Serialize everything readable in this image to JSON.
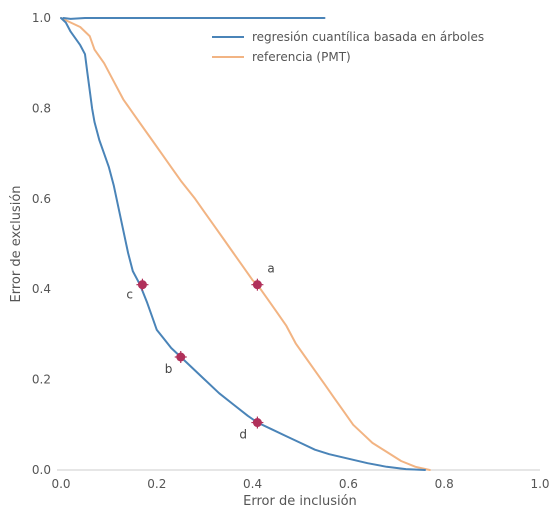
{
  "chart_data": {
    "type": "line",
    "xlabel": "Error de inclusión",
    "ylabel": "Error de exclusión",
    "xlim": [
      0.0,
      1.0
    ],
    "ylim": [
      0.0,
      1.0
    ],
    "x_ticks": [
      "0.0",
      "0.2",
      "0.4",
      "0.6",
      "0.8",
      "1.0"
    ],
    "y_ticks": [
      "0.0",
      "0.2",
      "0.4",
      "0.6",
      "0.8",
      "1.0"
    ],
    "grid": false,
    "legend_position": "top-right",
    "series": [
      {
        "name": "regresión cuantílica basada en árboles",
        "color": "#4a84b8",
        "points": [
          [
            0.0,
            1.0
          ],
          [
            0.01,
            0.99
          ],
          [
            0.02,
            0.97
          ],
          [
            0.03,
            0.955
          ],
          [
            0.04,
            0.94
          ],
          [
            0.05,
            0.92
          ],
          [
            0.055,
            0.88
          ],
          [
            0.06,
            0.84
          ],
          [
            0.065,
            0.8
          ],
          [
            0.07,
            0.77
          ],
          [
            0.08,
            0.73
          ],
          [
            0.09,
            0.7
          ],
          [
            0.1,
            0.67
          ],
          [
            0.11,
            0.63
          ],
          [
            0.12,
            0.58
          ],
          [
            0.13,
            0.53
          ],
          [
            0.14,
            0.48
          ],
          [
            0.15,
            0.44
          ],
          [
            0.165,
            0.41
          ],
          [
            0.18,
            0.37
          ],
          [
            0.19,
            0.34
          ],
          [
            0.2,
            0.31
          ],
          [
            0.215,
            0.29
          ],
          [
            0.23,
            0.27
          ],
          [
            0.25,
            0.25
          ],
          [
            0.27,
            0.23
          ],
          [
            0.3,
            0.2
          ],
          [
            0.33,
            0.17
          ],
          [
            0.36,
            0.145
          ],
          [
            0.39,
            0.12
          ],
          [
            0.41,
            0.105
          ],
          [
            0.44,
            0.09
          ],
          [
            0.47,
            0.075
          ],
          [
            0.5,
            0.06
          ],
          [
            0.53,
            0.045
          ],
          [
            0.56,
            0.035
          ],
          [
            0.6,
            0.025
          ],
          [
            0.64,
            0.015
          ],
          [
            0.68,
            0.007
          ],
          [
            0.72,
            0.002
          ],
          [
            0.76,
            0.0
          ]
        ]
      },
      {
        "name": "referencia (PMT)",
        "color": "#f2b483",
        "points": [
          [
            0.0,
            1.0
          ],
          [
            0.02,
            0.99
          ],
          [
            0.04,
            0.98
          ],
          [
            0.06,
            0.96
          ],
          [
            0.07,
            0.93
          ],
          [
            0.09,
            0.9
          ],
          [
            0.11,
            0.86
          ],
          [
            0.13,
            0.82
          ],
          [
            0.15,
            0.79
          ],
          [
            0.17,
            0.76
          ],
          [
            0.19,
            0.73
          ],
          [
            0.21,
            0.7
          ],
          [
            0.23,
            0.67
          ],
          [
            0.25,
            0.64
          ],
          [
            0.28,
            0.6
          ],
          [
            0.3,
            0.57
          ],
          [
            0.32,
            0.54
          ],
          [
            0.34,
            0.51
          ],
          [
            0.36,
            0.48
          ],
          [
            0.38,
            0.45
          ],
          [
            0.4,
            0.42
          ],
          [
            0.41,
            0.41
          ],
          [
            0.43,
            0.38
          ],
          [
            0.45,
            0.35
          ],
          [
            0.47,
            0.32
          ],
          [
            0.49,
            0.28
          ],
          [
            0.51,
            0.25
          ],
          [
            0.53,
            0.22
          ],
          [
            0.55,
            0.19
          ],
          [
            0.57,
            0.16
          ],
          [
            0.59,
            0.13
          ],
          [
            0.61,
            0.1
          ],
          [
            0.63,
            0.08
          ],
          [
            0.65,
            0.06
          ],
          [
            0.68,
            0.04
          ],
          [
            0.71,
            0.02
          ],
          [
            0.74,
            0.007
          ],
          [
            0.77,
            0.0
          ]
        ]
      },
      {
        "name": "",
        "color": "#4a84b8",
        "points": [
          [
            0.005,
            1.0
          ],
          [
            0.02,
            0.998
          ],
          [
            0.05,
            1.0
          ],
          [
            0.1,
            1.0
          ],
          [
            0.2,
            1.0
          ],
          [
            0.3,
            1.0
          ],
          [
            0.4,
            1.0
          ],
          [
            0.5,
            1.0
          ],
          [
            0.55,
            1.0
          ]
        ]
      }
    ],
    "annotated_points": [
      {
        "label": "a",
        "x": 0.41,
        "y": 0.41
      },
      {
        "label": "b",
        "x": 0.25,
        "y": 0.25
      },
      {
        "label": "c",
        "x": 0.17,
        "y": 0.41
      },
      {
        "label": "d",
        "x": 0.41,
        "y": 0.105
      }
    ],
    "point_color": "#b0305a"
  }
}
